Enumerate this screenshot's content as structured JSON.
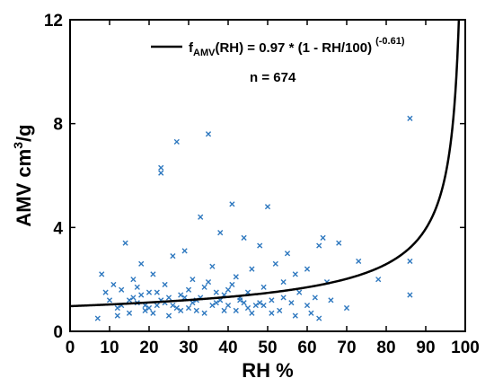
{
  "chart_data": {
    "type": "scatter",
    "xlabel": "RH %",
    "ylabel": "AMV cm",
    "ylabel_sup": "3",
    "ylabel_tail": "/g",
    "xlim": [
      0,
      100
    ],
    "ylim": [
      0,
      12
    ],
    "xticks": [
      "0",
      "10",
      "20",
      "30",
      "40",
      "50",
      "60",
      "70",
      "80",
      "90",
      "100"
    ],
    "yticks": [
      "0",
      "4",
      "8",
      "12"
    ],
    "xtick_values": [
      0,
      10,
      20,
      30,
      40,
      50,
      60,
      70,
      80,
      90,
      100
    ],
    "ytick_values": [
      0,
      4,
      8,
      12
    ],
    "grid": false,
    "legend_placement": "top-right",
    "legend": {
      "prefix": "f",
      "sub": "AMV",
      "text": "(RH) = 0.97 * (1 - RH/100)",
      "sup": "(-0.61)",
      "n_text": "n = 674"
    },
    "fit": {
      "a": 0.97,
      "b": -0.61
    },
    "series": [
      {
        "marker": "x",
        "color": "#2E78BF",
        "points": [
          [
            8,
            2.2
          ],
          [
            9,
            1.5
          ],
          [
            10,
            1.2
          ],
          [
            11,
            1.8
          ],
          [
            12,
            0.9
          ],
          [
            13,
            1.6
          ],
          [
            14,
            3.4
          ],
          [
            15,
            0.7
          ],
          [
            16,
            2.0
          ],
          [
            17,
            1.1
          ],
          [
            18,
            2.6
          ],
          [
            19,
            0.8
          ],
          [
            20,
            1.5
          ],
          [
            21,
            2.2
          ],
          [
            22,
            1.0
          ],
          [
            23,
            6.3
          ],
          [
            23,
            6.1
          ],
          [
            24,
            1.8
          ],
          [
            25,
            0.6
          ],
          [
            26,
            2.9
          ],
          [
            27,
            7.3
          ],
          [
            28,
            1.4
          ],
          [
            29,
            3.1
          ],
          [
            30,
            0.9
          ],
          [
            31,
            2.0
          ],
          [
            32,
            1.2
          ],
          [
            33,
            4.4
          ],
          [
            34,
            0.7
          ],
          [
            35,
            7.6
          ],
          [
            36,
            2.5
          ],
          [
            37,
            1.1
          ],
          [
            38,
            3.8
          ],
          [
            39,
            0.8
          ],
          [
            40,
            1.6
          ],
          [
            41,
            4.9
          ],
          [
            42,
            2.1
          ],
          [
            43,
            1.3
          ],
          [
            44,
            3.6
          ],
          [
            45,
            0.9
          ],
          [
            46,
            2.4
          ],
          [
            47,
            1.0
          ],
          [
            48,
            3.3
          ],
          [
            49,
            1.7
          ],
          [
            50,
            4.8
          ],
          [
            51,
            1.2
          ],
          [
            52,
            2.6
          ],
          [
            53,
            0.8
          ],
          [
            54,
            1.9
          ],
          [
            55,
            3.0
          ],
          [
            56,
            1.1
          ],
          [
            57,
            2.2
          ],
          [
            58,
            1.5
          ],
          [
            60,
            2.4
          ],
          [
            61,
            0.7
          ],
          [
            62,
            1.3
          ],
          [
            63,
            3.3
          ],
          [
            64,
            3.6
          ],
          [
            65,
            1.9
          ],
          [
            66,
            1.2
          ],
          [
            68,
            3.4
          ],
          [
            70,
            0.9
          ],
          [
            73,
            2.7
          ],
          [
            78,
            2.0
          ],
          [
            86,
            8.2
          ],
          [
            86,
            2.7
          ],
          [
            86,
            1.4
          ],
          [
            7,
            0.5
          ],
          [
            12,
            0.6
          ],
          [
            15,
            1.2
          ],
          [
            18,
            1.4
          ],
          [
            21,
            0.7
          ],
          [
            24,
            1.1
          ],
          [
            27,
            0.9
          ],
          [
            30,
            1.6
          ],
          [
            33,
            1.3
          ],
          [
            36,
            1.0
          ],
          [
            39,
            1.4
          ],
          [
            42,
            0.8
          ],
          [
            45,
            1.5
          ],
          [
            48,
            1.1
          ],
          [
            51,
            0.7
          ],
          [
            54,
            1.3
          ],
          [
            57,
            0.6
          ],
          [
            60,
            1.0
          ],
          [
            63,
            0.5
          ],
          [
            13,
            1.0
          ],
          [
            16,
            1.3
          ],
          [
            19,
            1.0
          ],
          [
            22,
            1.5
          ],
          [
            25,
            1.3
          ],
          [
            28,
            0.8
          ],
          [
            31,
            1.1
          ],
          [
            34,
            1.7
          ],
          [
            37,
            1.5
          ],
          [
            40,
            1.0
          ],
          [
            43,
            1.2
          ],
          [
            46,
            0.7
          ],
          [
            49,
            1.0
          ],
          [
            20,
            0.9
          ],
          [
            26,
            1.0
          ],
          [
            32,
            0.8
          ],
          [
            38,
            1.2
          ],
          [
            44,
            1.1
          ],
          [
            35,
            1.9
          ],
          [
            29,
            1.3
          ],
          [
            41,
            1.8
          ],
          [
            17,
            1.7
          ],
          [
            23,
            1.2
          ]
        ]
      }
    ]
  }
}
